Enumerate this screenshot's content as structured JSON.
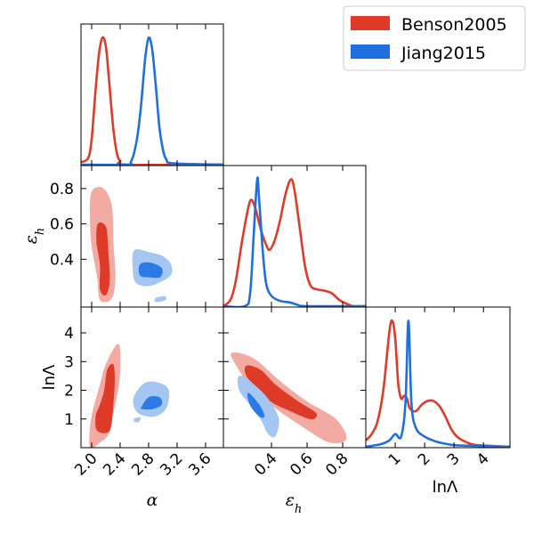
{
  "chart_data": {
    "type": "corner",
    "parameters": [
      {
        "name": "alpha",
        "label": "α",
        "ticks": [
          "2.0",
          "2.4",
          "2.8",
          "3.2",
          "3.6"
        ],
        "range": [
          1.85,
          3.85
        ]
      },
      {
        "name": "eps_h",
        "label": "ε",
        "sub": "h",
        "ticks": [
          "0.4",
          "0.6",
          "0.8"
        ],
        "range": [
          0.13,
          0.93
        ]
      },
      {
        "name": "lnLambda",
        "label": "lnΛ",
        "ticks": [
          "1",
          "2",
          "3",
          "4"
        ],
        "range": [
          0.0,
          4.9
        ]
      }
    ],
    "series": [
      {
        "name": "Benson2005",
        "color": "#e03a28",
        "fill_outer": "#f2aaa3",
        "fill_inner": "#de3a28",
        "pdf_alpha": [
          [
            1.85,
            0.02
          ],
          [
            1.95,
            0.05
          ],
          [
            2.0,
            0.2
          ],
          [
            2.05,
            0.55
          ],
          [
            2.1,
            0.85
          ],
          [
            2.15,
            0.99
          ],
          [
            2.2,
            0.92
          ],
          [
            2.25,
            0.62
          ],
          [
            2.3,
            0.3
          ],
          [
            2.35,
            0.1
          ],
          [
            2.4,
            0.03
          ],
          [
            2.5,
            0.0
          ],
          [
            3.85,
            0.0
          ]
        ],
        "pdf_eps_h": [
          [
            0.13,
            0.0
          ],
          [
            0.17,
            0.05
          ],
          [
            0.2,
            0.2
          ],
          [
            0.24,
            0.55
          ],
          [
            0.28,
            0.82
          ],
          [
            0.31,
            0.76
          ],
          [
            0.34,
            0.6
          ],
          [
            0.37,
            0.48
          ],
          [
            0.39,
            0.44
          ],
          [
            0.42,
            0.52
          ],
          [
            0.45,
            0.68
          ],
          [
            0.48,
            0.88
          ],
          [
            0.51,
            0.99
          ],
          [
            0.53,
            0.9
          ],
          [
            0.56,
            0.6
          ],
          [
            0.59,
            0.3
          ],
          [
            0.62,
            0.16
          ],
          [
            0.66,
            0.13
          ],
          [
            0.7,
            0.12
          ],
          [
            0.74,
            0.1
          ],
          [
            0.78,
            0.05
          ],
          [
            0.82,
            0.02
          ],
          [
            0.86,
            0.0
          ],
          [
            0.93,
            0.0
          ]
        ],
        "pdf_lnLambda": [
          [
            0.0,
            0.05
          ],
          [
            0.2,
            0.1
          ],
          [
            0.4,
            0.2
          ],
          [
            0.6,
            0.45
          ],
          [
            0.8,
            0.9
          ],
          [
            0.9,
            0.99
          ],
          [
            1.0,
            0.85
          ],
          [
            1.1,
            0.5
          ],
          [
            1.2,
            0.38
          ],
          [
            1.3,
            0.4
          ],
          [
            1.4,
            0.38
          ],
          [
            1.5,
            0.3
          ],
          [
            1.7,
            0.28
          ],
          [
            1.9,
            0.33
          ],
          [
            2.1,
            0.36
          ],
          [
            2.3,
            0.36
          ],
          [
            2.5,
            0.32
          ],
          [
            2.7,
            0.24
          ],
          [
            2.9,
            0.14
          ],
          [
            3.1,
            0.08
          ],
          [
            3.3,
            0.05
          ],
          [
            3.6,
            0.02
          ],
          [
            4.0,
            0.01
          ],
          [
            4.9,
            0.0
          ]
        ],
        "contours": {
          "alpha_eps": {
            "outer": [
              [
                2.0,
                0.78
              ],
              [
                2.16,
                0.8
              ],
              [
                2.28,
                0.7
              ],
              [
                2.3,
                0.5
              ],
              [
                2.33,
                0.3
              ],
              [
                2.28,
                0.18
              ],
              [
                2.12,
                0.17
              ],
              [
                2.08,
                0.3
              ],
              [
                2.0,
                0.48
              ],
              [
                1.98,
                0.62
              ]
            ],
            "inner": [
              [
                2.09,
                0.6
              ],
              [
                2.2,
                0.58
              ],
              [
                2.23,
                0.44
              ],
              [
                2.25,
                0.28
              ],
              [
                2.2,
                0.2
              ],
              [
                2.12,
                0.23
              ],
              [
                2.12,
                0.37
              ],
              [
                2.07,
                0.5
              ]
            ]
          },
          "alpha_lnL": {
            "outer": [
              [
                1.98,
                0.0
              ],
              [
                2.12,
                0.2
              ],
              [
                2.24,
                0.5
              ],
              [
                2.3,
                1.2
              ],
              [
                2.38,
                2.2
              ],
              [
                2.4,
                3.2
              ],
              [
                2.36,
                3.6
              ],
              [
                2.2,
                2.9
              ],
              [
                2.12,
                2.2
              ],
              [
                2.02,
                1.3
              ],
              [
                1.98,
                0.7
              ]
            ],
            "inner": [
              [
                2.08,
                0.6
              ],
              [
                2.25,
                0.6
              ],
              [
                2.3,
                1.5
              ],
              [
                2.32,
                2.4
              ],
              [
                2.3,
                2.9
              ],
              [
                2.22,
                2.7
              ],
              [
                2.18,
                2.0
              ],
              [
                2.12,
                1.5
              ],
              [
                2.06,
                1.1
              ]
            ]
          },
          "eps_lnL": {
            "outer": [
              [
                0.18,
                3.3
              ],
              [
                0.3,
                3.1
              ],
              [
                0.45,
                2.3
              ],
              [
                0.6,
                1.6
              ],
              [
                0.76,
                1.0
              ],
              [
                0.82,
                0.3
              ],
              [
                0.72,
                0.2
              ],
              [
                0.56,
                0.8
              ],
              [
                0.44,
                1.3
              ],
              [
                0.3,
                2.0
              ],
              [
                0.2,
                2.9
              ]
            ],
            "inner": [
              [
                0.26,
                2.85
              ],
              [
                0.34,
                2.7
              ],
              [
                0.42,
                2.2
              ],
              [
                0.55,
                1.6
              ],
              [
                0.65,
                1.2
              ],
              [
                0.62,
                1.0
              ],
              [
                0.5,
                1.3
              ],
              [
                0.4,
                1.6
              ],
              [
                0.32,
                2.1
              ],
              [
                0.26,
                2.5
              ]
            ]
          }
        }
      },
      {
        "name": "Jiang2015",
        "color": "#1f6fde",
        "fill_outer": "#a4c6f2",
        "fill_inner": "#2b7ae8",
        "pdf_alpha": [
          [
            1.85,
            0.0
          ],
          [
            2.5,
            0.0
          ],
          [
            2.55,
            0.02
          ],
          [
            2.6,
            0.1
          ],
          [
            2.65,
            0.25
          ],
          [
            2.7,
            0.5
          ],
          [
            2.75,
            0.82
          ],
          [
            2.8,
            0.99
          ],
          [
            2.85,
            0.9
          ],
          [
            2.9,
            0.62
          ],
          [
            2.95,
            0.3
          ],
          [
            3.0,
            0.12
          ],
          [
            3.05,
            0.04
          ],
          [
            3.15,
            0.01
          ],
          [
            3.85,
            0.0
          ]
        ],
        "pdf_eps_h": [
          [
            0.13,
            0.0
          ],
          [
            0.25,
            0.0
          ],
          [
            0.28,
            0.1
          ],
          [
            0.3,
            0.55
          ],
          [
            0.32,
            0.99
          ],
          [
            0.33,
            0.85
          ],
          [
            0.35,
            0.45
          ],
          [
            0.37,
            0.18
          ],
          [
            0.4,
            0.08
          ],
          [
            0.45,
            0.04
          ],
          [
            0.5,
            0.03
          ],
          [
            0.55,
            0.01
          ],
          [
            0.6,
            0.0
          ],
          [
            0.93,
            0.0
          ]
        ],
        "pdf_lnLambda": [
          [
            0.0,
            0.0
          ],
          [
            0.5,
            0.02
          ],
          [
            0.8,
            0.05
          ],
          [
            1.0,
            0.1
          ],
          [
            1.2,
            0.08
          ],
          [
            1.35,
            0.35
          ],
          [
            1.45,
            0.99
          ],
          [
            1.55,
            0.35
          ],
          [
            1.7,
            0.15
          ],
          [
            2.0,
            0.08
          ],
          [
            2.4,
            0.04
          ],
          [
            2.8,
            0.02
          ],
          [
            3.2,
            0.01
          ],
          [
            4.9,
            0.0
          ]
        ],
        "contours": {
          "alpha_eps": {
            "outer": [
              [
                2.6,
                0.45
              ],
              [
                2.8,
                0.44
              ],
              [
                2.98,
                0.42
              ],
              [
                3.1,
                0.38
              ],
              [
                3.12,
                0.32
              ],
              [
                3.0,
                0.28
              ],
              [
                2.8,
                0.25
              ],
              [
                2.62,
                0.27
              ],
              [
                2.58,
                0.35
              ]
            ],
            "inner": [
              [
                2.68,
                0.37
              ],
              [
                2.82,
                0.38
              ],
              [
                2.98,
                0.35
              ],
              [
                2.96,
                0.3
              ],
              [
                2.8,
                0.3
              ],
              [
                2.68,
                0.31
              ]
            ],
            "islands": [
              [
                [
                  2.9,
                  0.18
                ],
                [
                  3.03,
                  0.19
                ],
                [
                  3.03,
                  0.17
                ],
                [
                  2.9,
                  0.16
                ]
              ]
            ]
          },
          "alpha_lnL": {
            "outer": [
              [
                2.6,
                1.8
              ],
              [
                2.75,
                2.25
              ],
              [
                2.95,
                2.25
              ],
              [
                3.08,
                2.0
              ],
              [
                3.05,
                1.4
              ],
              [
                2.9,
                1.1
              ],
              [
                2.7,
                1.15
              ],
              [
                2.6,
                1.4
              ]
            ],
            "inner": [
              [
                2.7,
                1.4
              ],
              [
                2.8,
                1.75
              ],
              [
                2.95,
                1.75
              ],
              [
                2.98,
                1.5
              ],
              [
                2.85,
                1.35
              ],
              [
                2.72,
                1.35
              ]
            ],
            "islands": [
              [
                [
                  2.6,
                  1.0
                ],
                [
                  2.68,
                  1.05
                ],
                [
                  2.66,
                  0.9
                ],
                [
                  2.6,
                  0.92
                ]
              ]
            ]
          },
          "eps_lnL": {
            "outer": [
              [
                0.22,
                2.5
              ],
              [
                0.3,
                2.2
              ],
              [
                0.38,
                1.7
              ],
              [
                0.44,
                1.0
              ],
              [
                0.42,
                0.4
              ],
              [
                0.38,
                0.5
              ],
              [
                0.34,
                1.0
              ],
              [
                0.28,
                1.5
              ],
              [
                0.22,
                2.0
              ]
            ],
            "inner": [
              [
                0.27,
                1.9
              ],
              [
                0.33,
                1.5
              ],
              [
                0.36,
                1.1
              ],
              [
                0.33,
                1.1
              ],
              [
                0.28,
                1.5
              ]
            ]
          }
        }
      }
    ],
    "legend": {
      "placement": "top-right",
      "entries": [
        "Benson2005",
        "Jiang2015"
      ]
    }
  }
}
